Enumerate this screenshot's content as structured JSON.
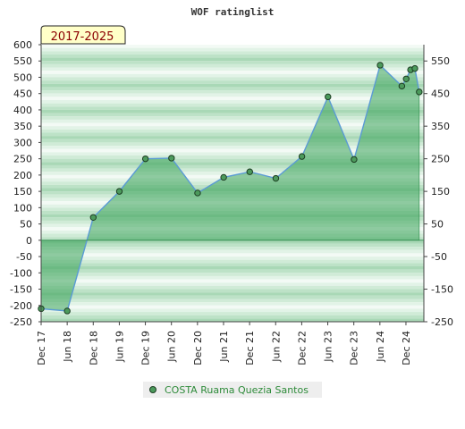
{
  "chart_data": {
    "type": "area",
    "title": "WOF ratinglist",
    "badge": "2017-2025",
    "xlabel": "",
    "ylabel": "",
    "ylim": [
      -250,
      600
    ],
    "y_ticks_left": [
      600,
      550,
      500,
      450,
      400,
      350,
      300,
      250,
      200,
      150,
      100,
      50,
      0,
      -50,
      -100,
      -150,
      -200,
      -250
    ],
    "y_ticks_right": [
      550,
      450,
      350,
      250,
      150,
      50,
      -50,
      -150,
      -250
    ],
    "x_ticks": [
      "Dec 17",
      "Jun 18",
      "Dec 18",
      "Jun 19",
      "Dec 19",
      "Jun 20",
      "Dec 20",
      "Jun 21",
      "Dec 21",
      "Jun 22",
      "Dec 22",
      "Jun 23",
      "Dec 23",
      "Jun 24",
      "Dec 24"
    ],
    "grid": true,
    "legend_position": "bottom",
    "colors": {
      "line": "#5b9bd5",
      "fill": "#3aa35a",
      "marker": "#4c9a5c",
      "band_dark": "#a7d8b4",
      "band_light": "#eef8f0"
    },
    "series": [
      {
        "name": "COSTA Ruama Quezia Santos",
        "points": [
          {
            "x": "2017-12",
            "y": -210
          },
          {
            "x": "2018-06",
            "y": -217
          },
          {
            "x": "2018-12",
            "y": 70
          },
          {
            "x": "2019-06",
            "y": 150
          },
          {
            "x": "2019-12",
            "y": 250
          },
          {
            "x": "2020-06",
            "y": 252
          },
          {
            "x": "2020-12",
            "y": 145
          },
          {
            "x": "2021-06",
            "y": 193
          },
          {
            "x": "2021-12",
            "y": 210
          },
          {
            "x": "2022-06",
            "y": 190
          },
          {
            "x": "2022-12",
            "y": 257
          },
          {
            "x": "2023-06",
            "y": 440
          },
          {
            "x": "2023-12",
            "y": 248
          },
          {
            "x": "2024-06",
            "y": 537
          },
          {
            "x": "2024-11",
            "y": 473
          },
          {
            "x": "2024-12",
            "y": 495
          },
          {
            "x": "2025-01",
            "y": 523
          },
          {
            "x": "2025-02",
            "y": 527
          },
          {
            "x": "2025-03",
            "y": 455
          }
        ]
      }
    ]
  }
}
